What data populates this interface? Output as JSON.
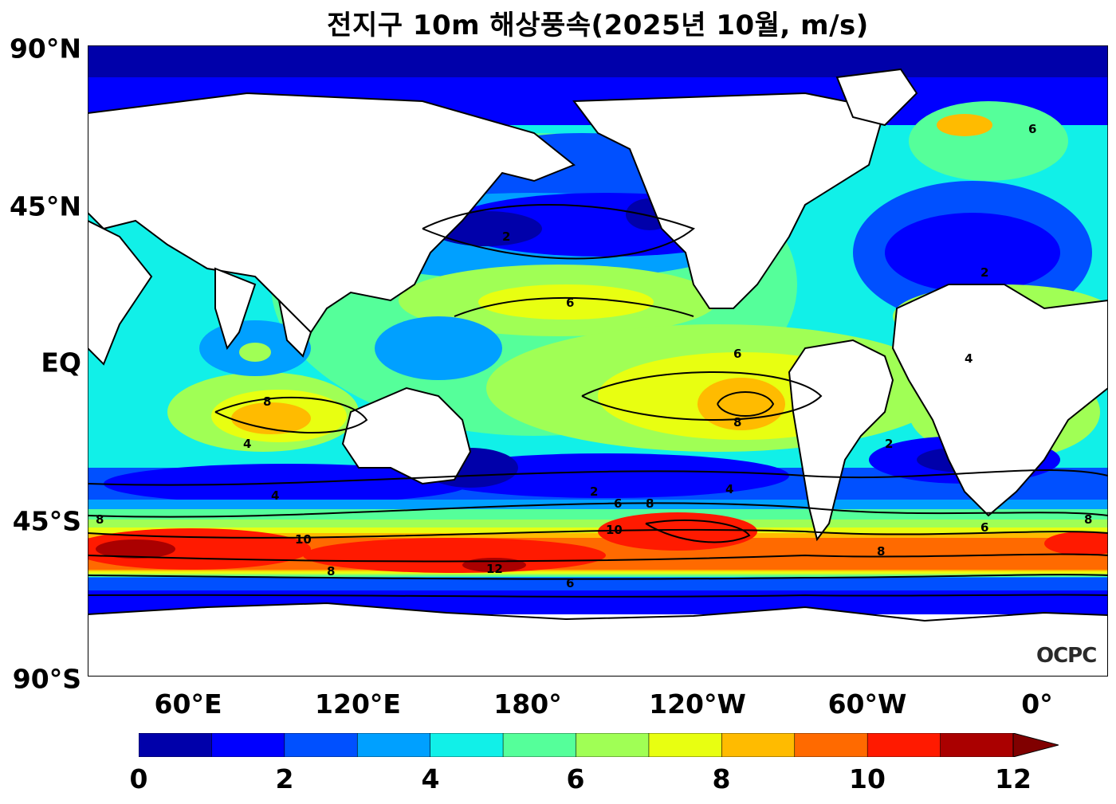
{
  "title": "전지구 10m 해상풍속(2025년 10월, m/s)",
  "lat_labels": [
    "90°N",
    "45°N",
    "EQ",
    "45°S",
    "90°S"
  ],
  "lon_labels": [
    "60°E",
    "120°E",
    "180°",
    "120°W",
    "60°W",
    "0°"
  ],
  "colorbar": {
    "tick_labels": [
      "0",
      "2",
      "4",
      "6",
      "8",
      "10",
      "12"
    ],
    "colors": [
      "#0000aa",
      "#0000ff",
      "#0050ff",
      "#00a0ff",
      "#11f0e8",
      "#55ff9a",
      "#a0ff55",
      "#e8ff11",
      "#ffbb00",
      "#ff6a00",
      "#ff1a00",
      "#aa0000"
    ],
    "extend_color": "#800000"
  },
  "logo": "OCPC",
  "contour_labels": [
    "2",
    "4",
    "6",
    "8",
    "10",
    "12"
  ]
}
